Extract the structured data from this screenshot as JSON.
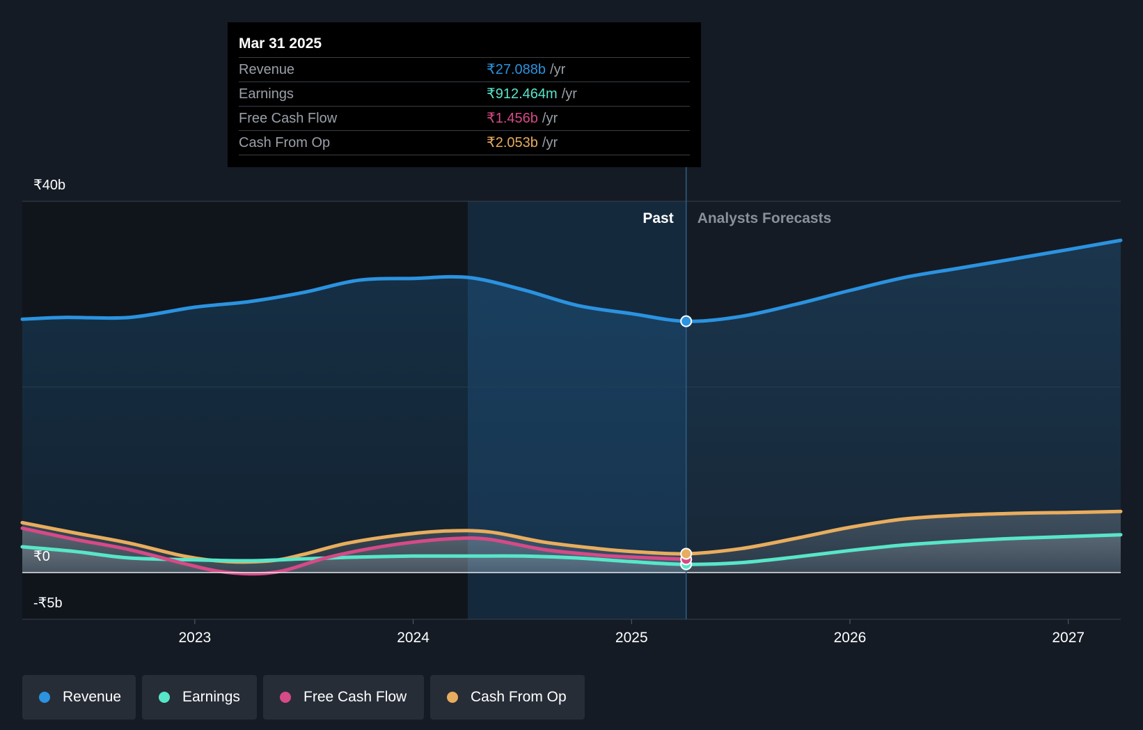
{
  "chart_data": {
    "type": "area",
    "x_axis": {
      "min": 2022.21,
      "max": 2027.24,
      "ticks": [
        "2023",
        "2024",
        "2025",
        "2026",
        "2027"
      ]
    },
    "y_axis": {
      "min": -5,
      "max": 40,
      "labels": [
        "₹40b",
        "₹0",
        "-₹5b"
      ]
    },
    "past_label": "Past",
    "forecast_label": "Analysts Forecasts",
    "past_end_x": 2025.25,
    "highlight_start_x": 2024.25,
    "series": [
      {
        "name": "Revenue",
        "color": "#2b93e0",
        "points": [
          [
            2022.21,
            27.3
          ],
          [
            2022.4,
            27.5
          ],
          [
            2022.7,
            27.5
          ],
          [
            2023.0,
            28.6
          ],
          [
            2023.25,
            29.2
          ],
          [
            2023.5,
            30.2
          ],
          [
            2023.75,
            31.5
          ],
          [
            2024.0,
            31.7
          ],
          [
            2024.25,
            31.8
          ],
          [
            2024.5,
            30.5
          ],
          [
            2024.75,
            28.8
          ],
          [
            2025.0,
            27.9
          ],
          [
            2025.25,
            27.088
          ],
          [
            2025.5,
            27.6
          ],
          [
            2025.75,
            28.9
          ],
          [
            2026.0,
            30.4
          ],
          [
            2026.25,
            31.8
          ],
          [
            2026.5,
            32.8
          ],
          [
            2026.75,
            33.8
          ],
          [
            2027.0,
            34.8
          ],
          [
            2027.24,
            35.8
          ]
        ]
      },
      {
        "name": "Earnings",
        "color": "#58e6c8",
        "points": [
          [
            2022.21,
            2.8
          ],
          [
            2022.45,
            2.3
          ],
          [
            2022.7,
            1.6
          ],
          [
            2023.0,
            1.4
          ],
          [
            2023.25,
            1.3
          ],
          [
            2023.5,
            1.5
          ],
          [
            2023.75,
            1.7
          ],
          [
            2024.0,
            1.8
          ],
          [
            2024.25,
            1.8
          ],
          [
            2024.5,
            1.8
          ],
          [
            2024.75,
            1.6
          ],
          [
            2025.0,
            1.2
          ],
          [
            2025.25,
            0.912
          ],
          [
            2025.5,
            1.1
          ],
          [
            2025.75,
            1.7
          ],
          [
            2026.0,
            2.4
          ],
          [
            2026.25,
            3.0
          ],
          [
            2026.5,
            3.4
          ],
          [
            2026.75,
            3.7
          ],
          [
            2027.0,
            3.9
          ],
          [
            2027.24,
            4.1
          ]
        ]
      },
      {
        "name": "Free Cash Flow",
        "color": "#d64a87",
        "points": [
          [
            2022.21,
            4.8
          ],
          [
            2022.45,
            3.6
          ],
          [
            2022.7,
            2.5
          ],
          [
            2022.95,
            1.0
          ],
          [
            2023.1,
            0.2
          ],
          [
            2023.25,
            -0.1
          ],
          [
            2023.4,
            0.2
          ],
          [
            2023.6,
            1.6
          ],
          [
            2023.8,
            2.6
          ],
          [
            2024.0,
            3.3
          ],
          [
            2024.2,
            3.7
          ],
          [
            2024.35,
            3.6
          ],
          [
            2024.6,
            2.5
          ],
          [
            2024.85,
            1.9
          ],
          [
            2025.0,
            1.7
          ],
          [
            2025.25,
            1.456
          ]
        ]
      },
      {
        "name": "Cash From Op",
        "color": "#e8ad5e",
        "points": [
          [
            2022.21,
            5.4
          ],
          [
            2022.45,
            4.3
          ],
          [
            2022.7,
            3.2
          ],
          [
            2022.95,
            1.8
          ],
          [
            2023.15,
            1.2
          ],
          [
            2023.35,
            1.3
          ],
          [
            2023.5,
            2.0
          ],
          [
            2023.7,
            3.2
          ],
          [
            2023.95,
            4.1
          ],
          [
            2024.15,
            4.5
          ],
          [
            2024.35,
            4.4
          ],
          [
            2024.6,
            3.3
          ],
          [
            2024.85,
            2.6
          ],
          [
            2025.0,
            2.3
          ],
          [
            2025.25,
            2.053
          ],
          [
            2025.5,
            2.6
          ],
          [
            2025.75,
            3.7
          ],
          [
            2026.0,
            4.9
          ],
          [
            2026.25,
            5.8
          ],
          [
            2026.5,
            6.2
          ],
          [
            2026.75,
            6.4
          ],
          [
            2027.0,
            6.5
          ],
          [
            2027.24,
            6.6
          ]
        ]
      }
    ]
  },
  "tooltip": {
    "date": "Mar 31 2025",
    "rows": [
      {
        "label": "Revenue",
        "value": "₹27.088b",
        "unit": "/yr",
        "color": "#2b93e0"
      },
      {
        "label": "Earnings",
        "value": "₹912.464m",
        "unit": "/yr",
        "color": "#58e6c8"
      },
      {
        "label": "Free Cash Flow",
        "value": "₹1.456b",
        "unit": "/yr",
        "color": "#d64a87"
      },
      {
        "label": "Cash From Op",
        "value": "₹2.053b",
        "unit": "/yr",
        "color": "#e8ad5e"
      }
    ]
  },
  "legend": {
    "items": [
      {
        "label": "Revenue",
        "color": "#2b93e0"
      },
      {
        "label": "Earnings",
        "color": "#58e6c8"
      },
      {
        "label": "Free Cash Flow",
        "color": "#d64a87"
      },
      {
        "label": "Cash From Op",
        "color": "#e8ad5e"
      }
    ]
  }
}
